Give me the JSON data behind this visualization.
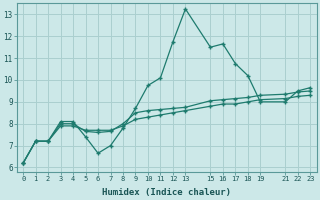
{
  "xlabel": "Humidex (Indice chaleur)",
  "bg_color": "#cce8e8",
  "grid_color": "#aacfcf",
  "line_color": "#1e7b6e",
  "xlim": [
    -0.5,
    23.5
  ],
  "ylim": [
    5.8,
    13.5
  ],
  "xticks": [
    0,
    1,
    2,
    3,
    4,
    5,
    6,
    7,
    8,
    9,
    10,
    11,
    12,
    13,
    15,
    16,
    17,
    18,
    19,
    21,
    22,
    23
  ],
  "yticks": [
    6,
    7,
    8,
    9,
    10,
    11,
    12,
    13
  ],
  "series_x": [
    0,
    1,
    2,
    3,
    4,
    5,
    6,
    7,
    8,
    9,
    10,
    11,
    12,
    13,
    15,
    16,
    17,
    18,
    19,
    21,
    22,
    23
  ],
  "series": [
    [
      6.2,
      7.2,
      7.2,
      8.1,
      8.1,
      7.4,
      6.65,
      7.0,
      7.8,
      8.7,
      9.75,
      10.1,
      11.75,
      13.25,
      11.5,
      11.65,
      10.75,
      10.2,
      9.0,
      9.0,
      9.5,
      9.65
    ],
    [
      6.2,
      7.2,
      7.2,
      8.0,
      8.0,
      7.65,
      7.6,
      7.65,
      8.0,
      8.5,
      8.6,
      8.65,
      8.7,
      8.75,
      9.05,
      9.1,
      9.15,
      9.2,
      9.3,
      9.35,
      9.45,
      9.5
    ],
    [
      6.2,
      7.2,
      7.2,
      7.9,
      7.9,
      7.7,
      7.7,
      7.7,
      7.9,
      8.2,
      8.3,
      8.4,
      8.5,
      8.6,
      8.8,
      8.9,
      8.9,
      9.0,
      9.1,
      9.15,
      9.25,
      9.3
    ]
  ]
}
